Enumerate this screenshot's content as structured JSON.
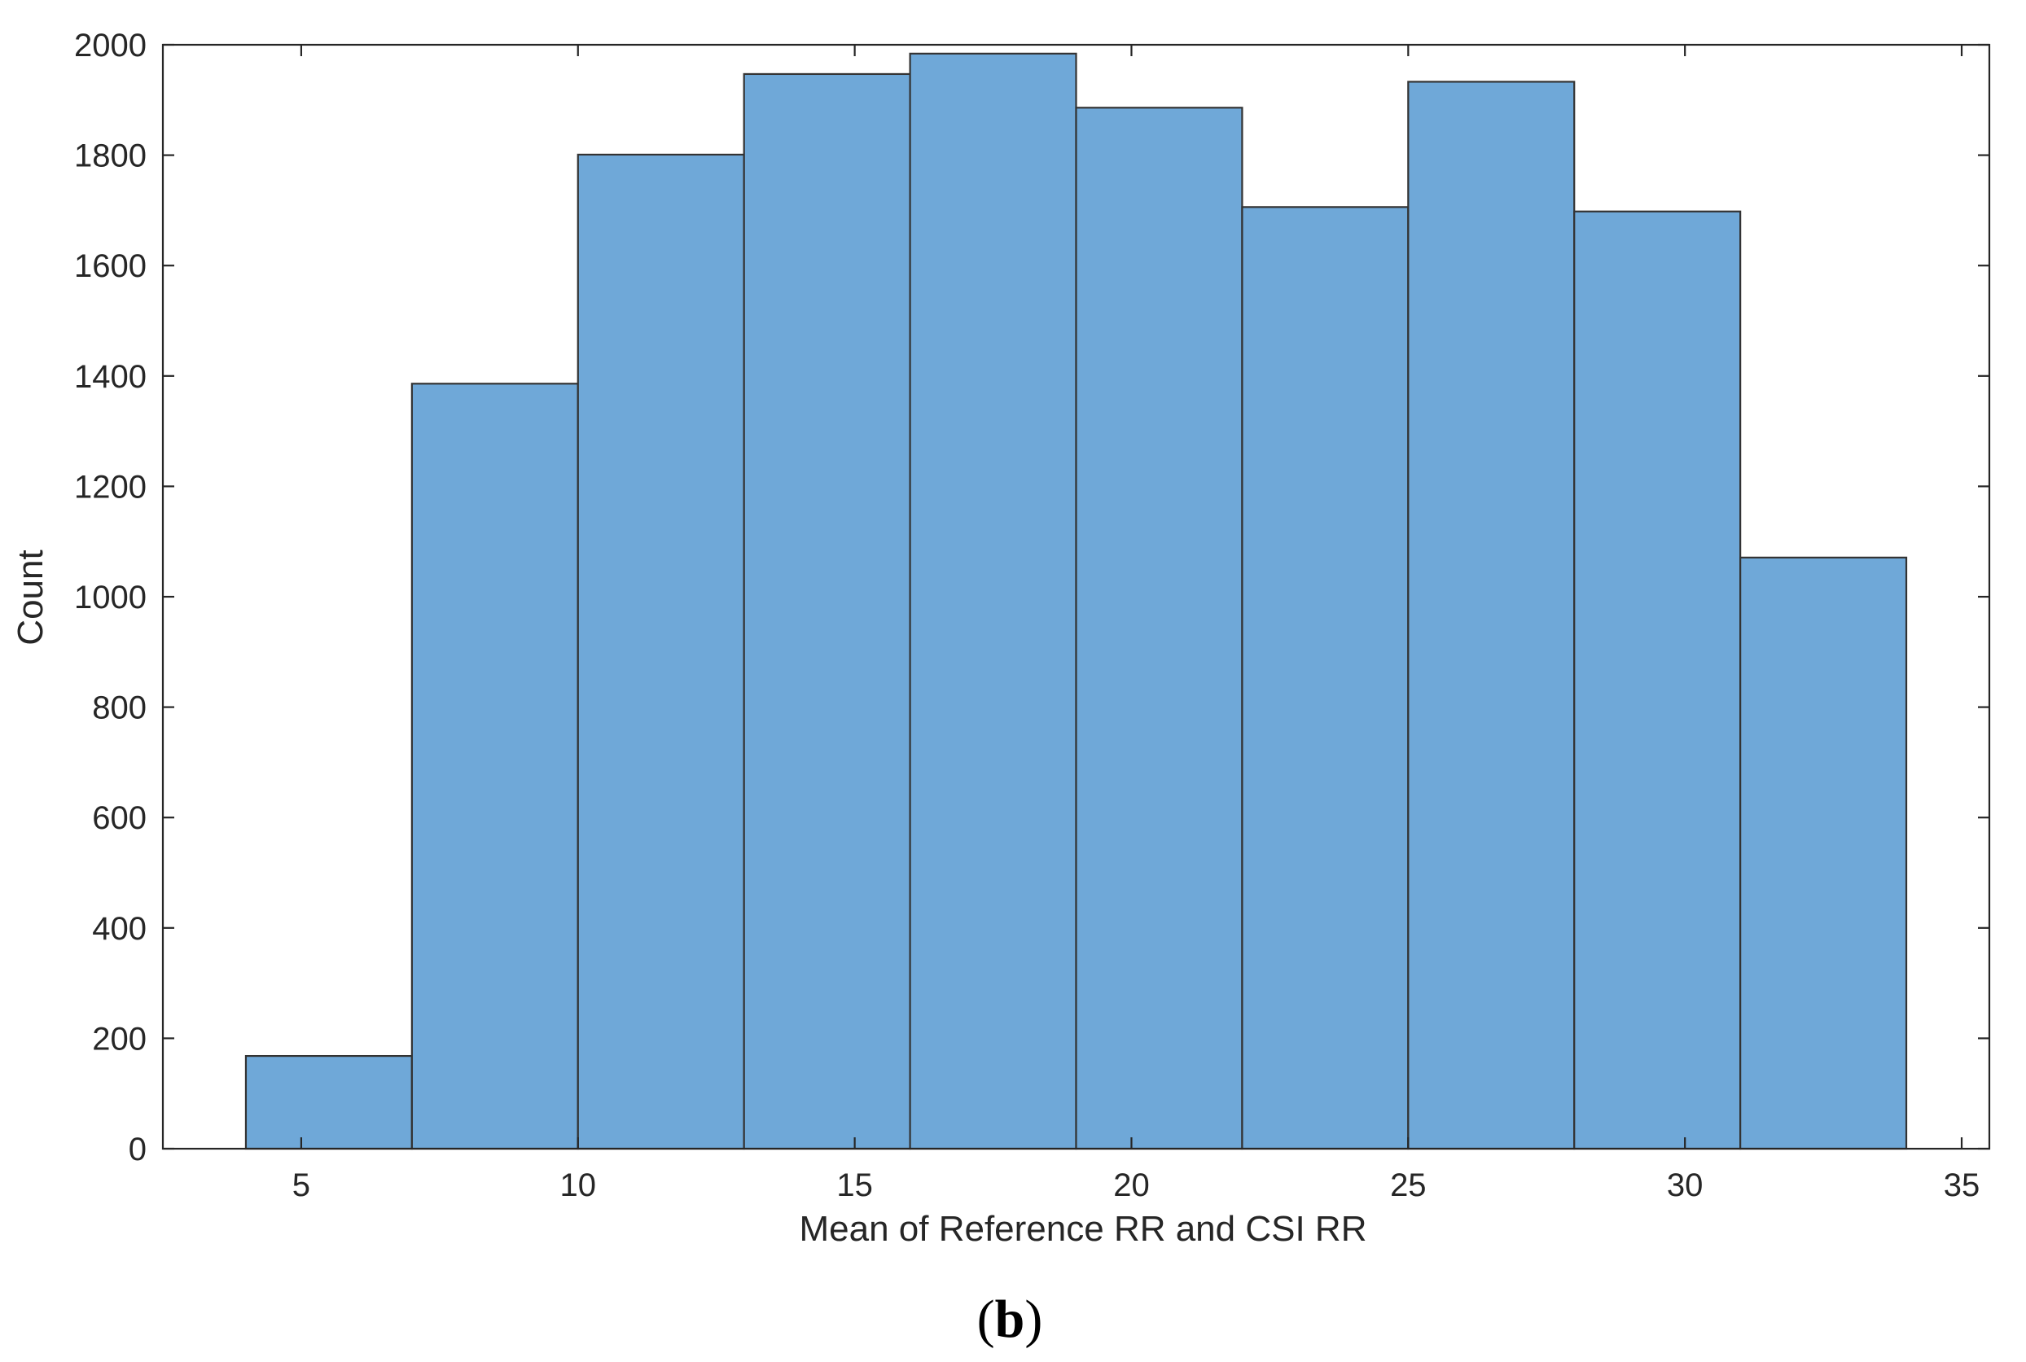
{
  "chart_data": {
    "type": "bar",
    "subtype": "histogram",
    "bin_edges": [
      4,
      7,
      10,
      13,
      16,
      19,
      22,
      25,
      28,
      31,
      34
    ],
    "values": [
      168,
      1386,
      1801,
      1947,
      1984,
      1886,
      1706,
      1933,
      1698,
      1071
    ],
    "xlim": [
      2.5,
      35.5
    ],
    "ylim": [
      0,
      2000
    ],
    "xticks": [
      5,
      10,
      15,
      20,
      25,
      30,
      35
    ],
    "yticks": [
      0,
      200,
      400,
      600,
      800,
      1000,
      1200,
      1400,
      1600,
      1800,
      2000
    ],
    "xlabel": "Mean of Reference RR and CSI RR",
    "ylabel": "Count",
    "grid": false,
    "box": true,
    "bar_color": "#6FA8D8",
    "edge_color": "#333333",
    "axis_color": "#262626"
  },
  "panel_label": {
    "open": "(",
    "letter": "b",
    "close": ")"
  }
}
